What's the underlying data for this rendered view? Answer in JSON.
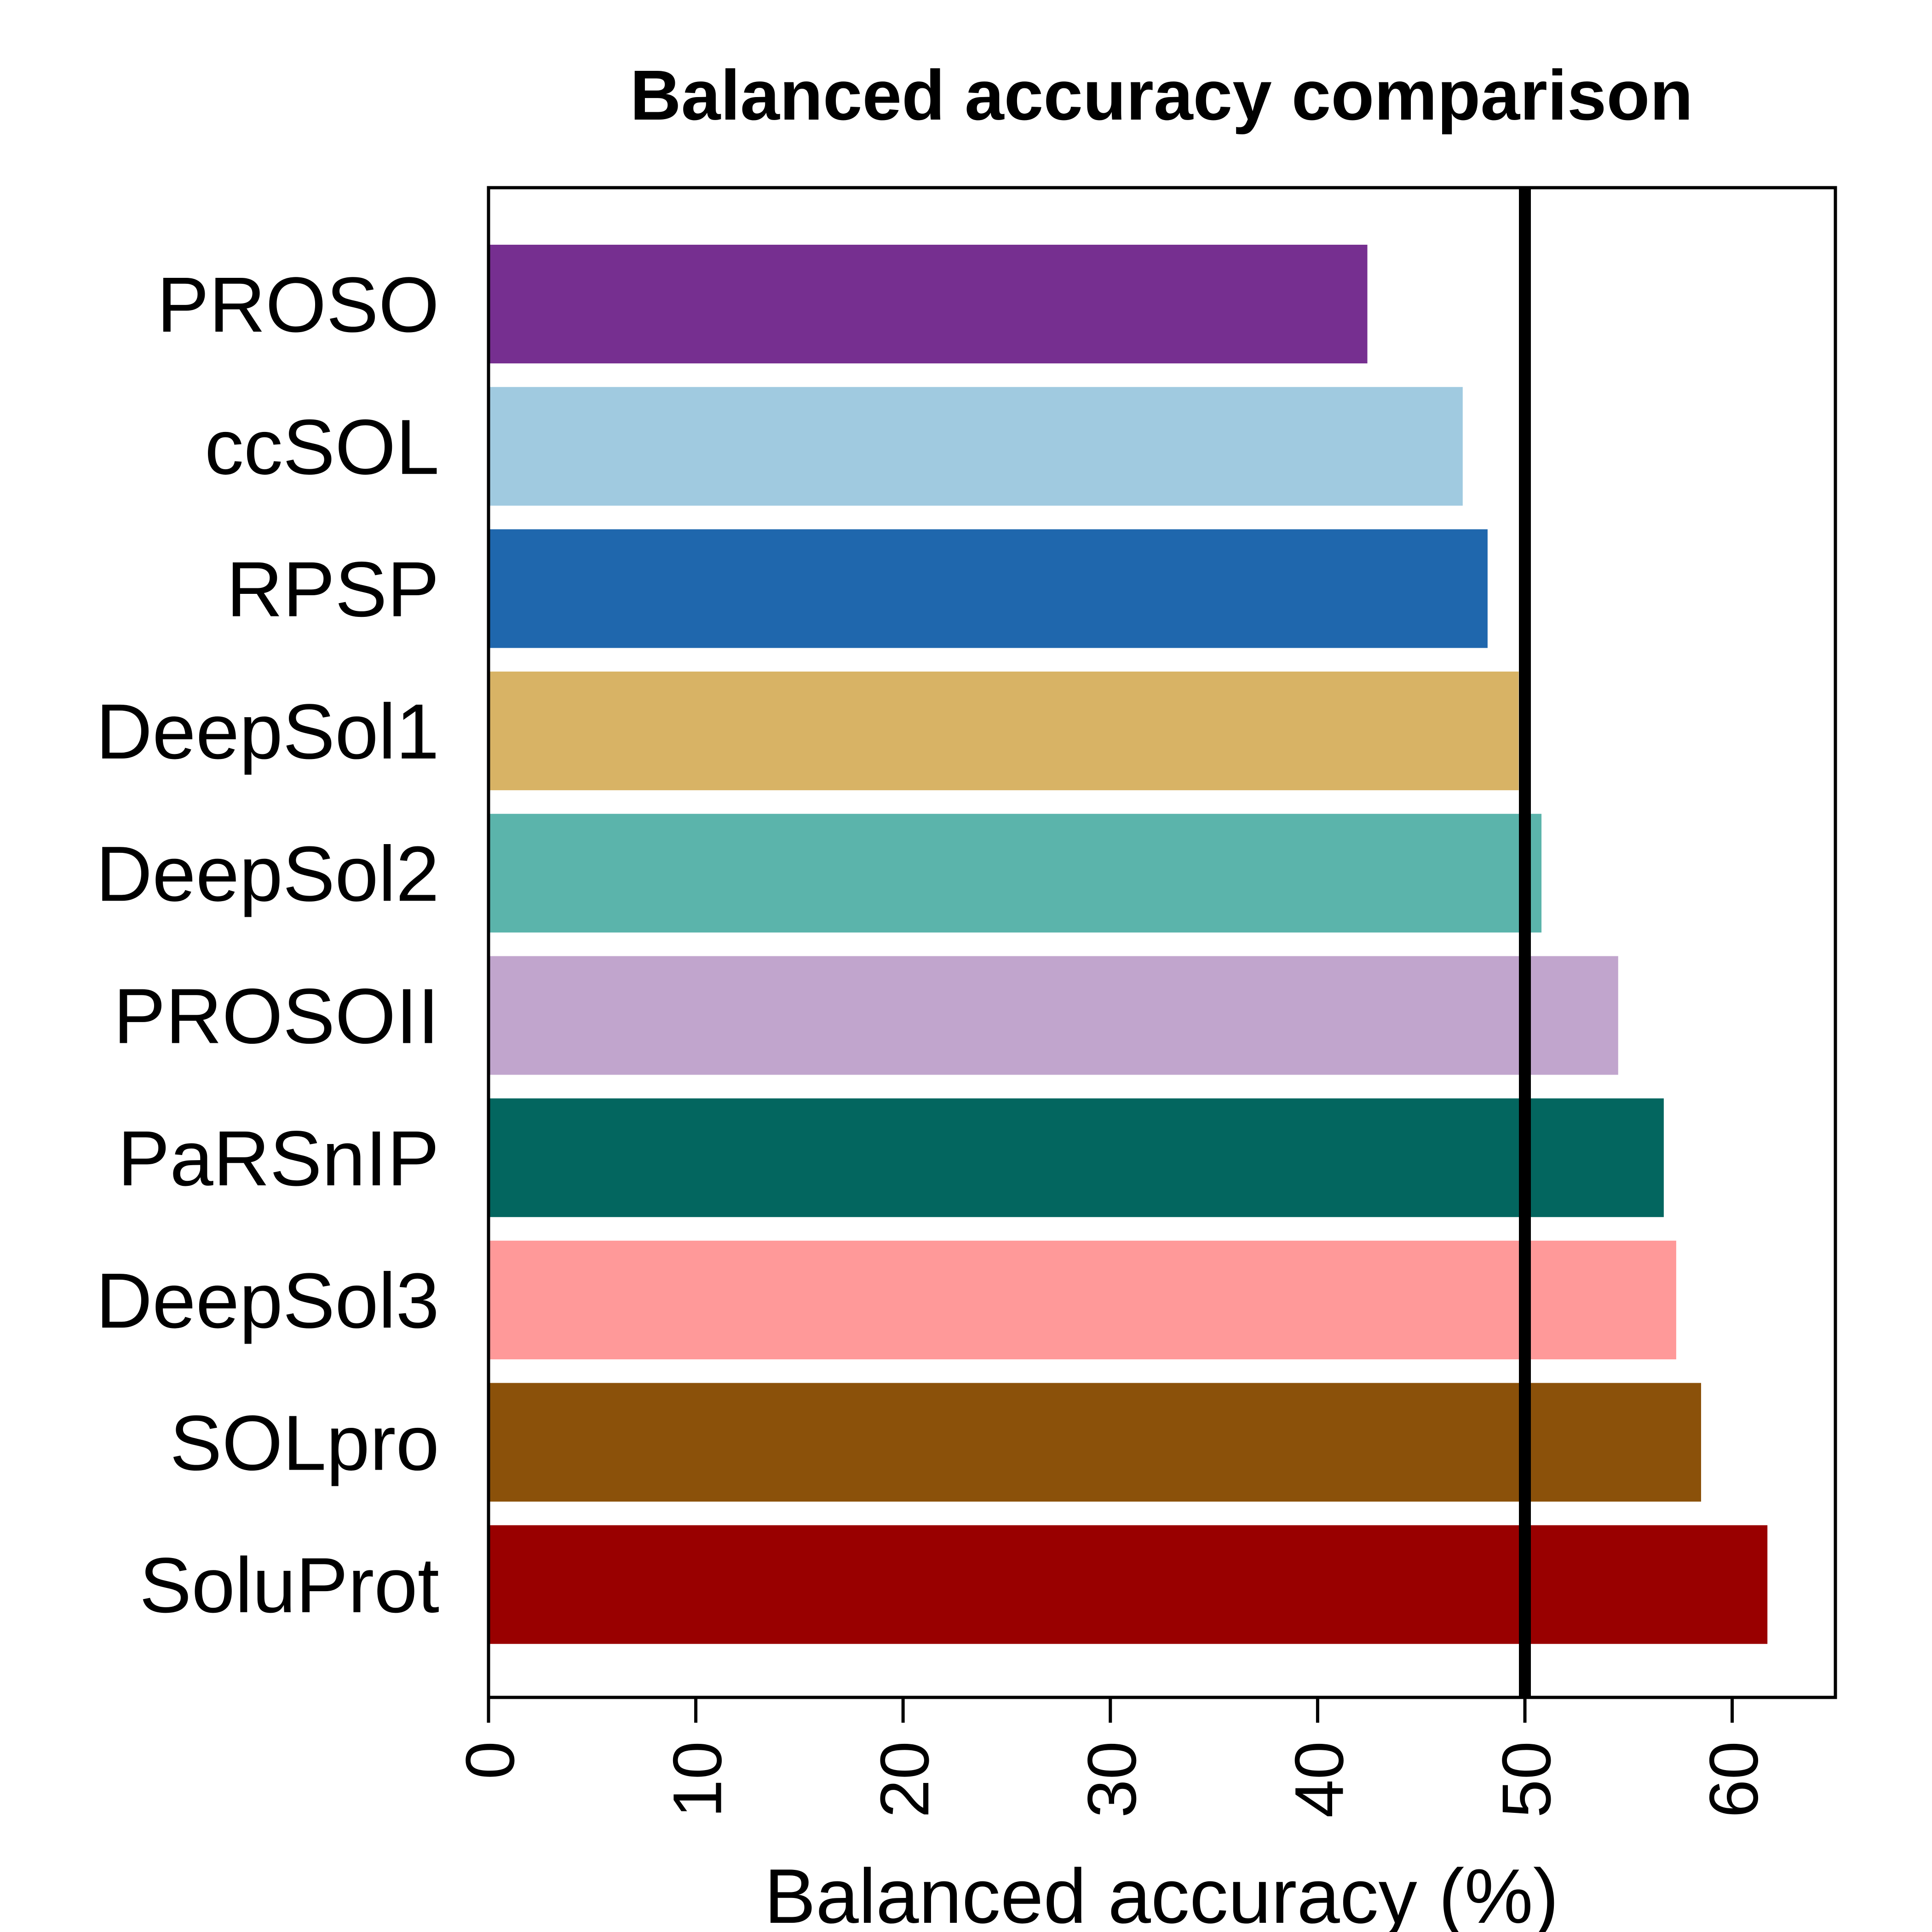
{
  "chart_data": {
    "type": "bar",
    "orientation": "horizontal",
    "title": "Balanced accuracy comparison",
    "xlabel": "Balanced accuracy (%)",
    "ylabel": "",
    "xlim": [
      0,
      65
    ],
    "x_ticks": [
      0,
      10,
      20,
      30,
      40,
      50,
      60
    ],
    "reference_line": 50,
    "grid": false,
    "categories": [
      "PROSO",
      "ccSOL",
      "RPSP",
      "DeepSol1",
      "DeepSol2",
      "PROSOII",
      "PaRSnIP",
      "DeepSol3",
      "SOLpro",
      "SoluProt"
    ],
    "values": [
      42.4,
      47.0,
      48.2,
      49.7,
      50.8,
      54.5,
      56.7,
      57.3,
      58.5,
      61.7
    ],
    "colors": [
      "#762F90",
      "#A0CAE0",
      "#1F67AD",
      "#D8B365",
      "#5BB4AB",
      "#C1A5CD",
      "#03665F",
      "#FF9999",
      "#8B510A",
      "#990000"
    ]
  }
}
